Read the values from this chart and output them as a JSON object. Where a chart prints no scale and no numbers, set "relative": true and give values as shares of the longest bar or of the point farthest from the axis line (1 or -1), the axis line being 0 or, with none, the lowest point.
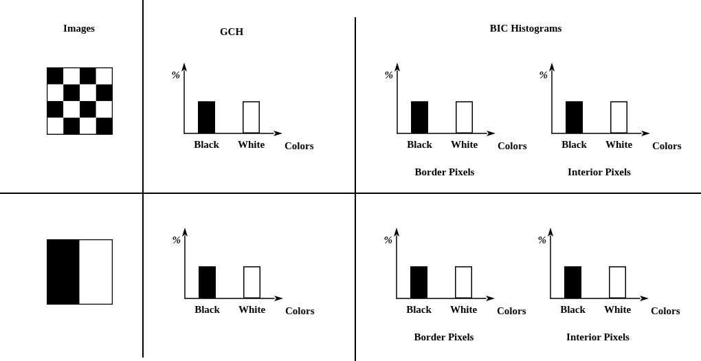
{
  "chart_data": [
    {
      "type": "other",
      "title": "Images"
    },
    {
      "type": "other",
      "title": "BIC Histograms"
    },
    {
      "type": "bar",
      "title": "GCH",
      "categories": [
        "Black",
        "White"
      ],
      "values": [
        1,
        1
      ],
      "colors": [
        "#000000",
        "#ffffff"
      ],
      "relative": true,
      "xlabel": "Colors",
      "ylabel": "%"
    },
    {
      "type": "bar",
      "categories": [
        "Black",
        "White"
      ],
      "values": [
        1,
        1
      ],
      "colors": [
        "#000000",
        "#ffffff"
      ],
      "relative": true,
      "xlabel": "Colors",
      "ylabel": "%",
      "annotations": [
        "Border Pixels"
      ]
    },
    {
      "type": "bar",
      "categories": [
        "Black",
        "White"
      ],
      "values": [
        1,
        1
      ],
      "colors": [
        "#000000",
        "#ffffff"
      ],
      "relative": true,
      "xlabel": "Colors",
      "ylabel": "%",
      "annotations": [
        "Interior Pixels"
      ]
    },
    {
      "type": "bar",
      "categories": [
        "Black",
        "White"
      ],
      "values": [
        1,
        1
      ],
      "colors": [
        "#000000",
        "#ffffff"
      ],
      "relative": true,
      "xlabel": "Colors",
      "ylabel": "%"
    },
    {
      "type": "bar",
      "categories": [
        "Black",
        "White"
      ],
      "values": [
        1,
        1
      ],
      "colors": [
        "#000000",
        "#ffffff"
      ],
      "relative": true,
      "xlabel": "Colors",
      "ylabel": "%",
      "annotations": [
        "Border Pixels"
      ]
    },
    {
      "type": "bar",
      "categories": [
        "Black",
        "White"
      ],
      "values": [
        1,
        1
      ],
      "colors": [
        "#000000",
        "#ffffff"
      ],
      "relative": true,
      "xlabel": "Colors",
      "ylabel": "%",
      "annotations": [
        "Interior Pixels"
      ]
    }
  ]
}
